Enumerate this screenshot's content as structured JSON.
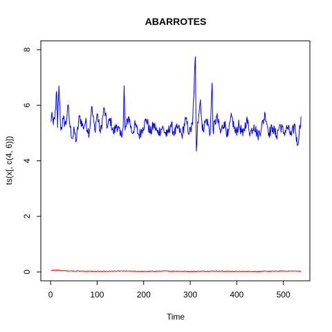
{
  "chart_data": {
    "type": "line",
    "title": "ABARROTES",
    "xlabel": "Time",
    "ylabel": "ts(x[, c(4, 6)])",
    "xlim": [
      -21,
      557
    ],
    "ylim": [
      -0.32,
      8.32
    ],
    "xticks": [
      0,
      100,
      200,
      300,
      400,
      500
    ],
    "yticks": [
      0,
      2,
      4,
      6,
      8
    ],
    "grid": false,
    "legend": "none",
    "n_points": 538,
    "series": [
      {
        "color": "#0000FF",
        "samples": [
          {
            "x": 1,
            "y": 5.4
          },
          {
            "x": 3,
            "y": 5.75
          },
          {
            "x": 6,
            "y": 5.3
          },
          {
            "x": 9,
            "y": 5.5
          },
          {
            "x": 13,
            "y": 6.5
          },
          {
            "x": 15,
            "y": 5.2
          },
          {
            "x": 18,
            "y": 6.7
          },
          {
            "x": 22,
            "y": 5.1
          },
          {
            "x": 27,
            "y": 5.5
          },
          {
            "x": 33,
            "y": 5.3
          },
          {
            "x": 37,
            "y": 6.0
          },
          {
            "x": 42,
            "y": 5.2
          },
          {
            "x": 47,
            "y": 4.8
          },
          {
            "x": 51,
            "y": 5.1
          },
          {
            "x": 55,
            "y": 4.7
          },
          {
            "x": 62,
            "y": 5.6
          },
          {
            "x": 70,
            "y": 5.2
          },
          {
            "x": 75,
            "y": 5.4
          },
          {
            "x": 83,
            "y": 5.0
          },
          {
            "x": 88,
            "y": 5.95
          },
          {
            "x": 95,
            "y": 5.1
          },
          {
            "x": 100,
            "y": 5.7
          },
          {
            "x": 107,
            "y": 5.0
          },
          {
            "x": 115,
            "y": 5.9
          },
          {
            "x": 122,
            "y": 5.2
          },
          {
            "x": 128,
            "y": 5.5
          },
          {
            "x": 135,
            "y": 5.0
          },
          {
            "x": 142,
            "y": 5.3
          },
          {
            "x": 150,
            "y": 4.9
          },
          {
            "x": 156,
            "y": 5.2
          },
          {
            "x": 158,
            "y": 6.7
          },
          {
            "x": 160,
            "y": 5.1
          },
          {
            "x": 168,
            "y": 5.6
          },
          {
            "x": 175,
            "y": 5.0
          },
          {
            "x": 182,
            "y": 5.3
          },
          {
            "x": 190,
            "y": 4.9
          },
          {
            "x": 198,
            "y": 5.2
          },
          {
            "x": 206,
            "y": 5.5
          },
          {
            "x": 214,
            "y": 5.0
          },
          {
            "x": 222,
            "y": 5.3
          },
          {
            "x": 230,
            "y": 5.0
          },
          {
            "x": 240,
            "y": 5.2
          },
          {
            "x": 250,
            "y": 4.9
          },
          {
            "x": 258,
            "y": 5.3
          },
          {
            "x": 266,
            "y": 5.0
          },
          {
            "x": 274,
            "y": 5.2
          },
          {
            "x": 282,
            "y": 4.9
          },
          {
            "x": 290,
            "y": 5.5
          },
          {
            "x": 298,
            "y": 5.0
          },
          {
            "x": 305,
            "y": 5.3
          },
          {
            "x": 311,
            "y": 7.75
          },
          {
            "x": 313,
            "y": 4.35
          },
          {
            "x": 316,
            "y": 5.4
          },
          {
            "x": 322,
            "y": 6.2
          },
          {
            "x": 326,
            "y": 5.1
          },
          {
            "x": 335,
            "y": 5.5
          },
          {
            "x": 343,
            "y": 5.0
          },
          {
            "x": 347,
            "y": 6.8
          },
          {
            "x": 349,
            "y": 5.1
          },
          {
            "x": 357,
            "y": 5.6
          },
          {
            "x": 365,
            "y": 5.0
          },
          {
            "x": 373,
            "y": 5.4
          },
          {
            "x": 381,
            "y": 4.9
          },
          {
            "x": 389,
            "y": 5.6
          },
          {
            "x": 397,
            "y": 5.0
          },
          {
            "x": 405,
            "y": 5.3
          },
          {
            "x": 413,
            "y": 4.9
          },
          {
            "x": 421,
            "y": 5.5
          },
          {
            "x": 429,
            "y": 5.0
          },
          {
            "x": 437,
            "y": 5.3
          },
          {
            "x": 445,
            "y": 4.9
          },
          {
            "x": 453,
            "y": 5.2
          },
          {
            "x": 461,
            "y": 5.7
          },
          {
            "x": 469,
            "y": 5.0
          },
          {
            "x": 477,
            "y": 5.2
          },
          {
            "x": 485,
            "y": 4.9
          },
          {
            "x": 493,
            "y": 5.3
          },
          {
            "x": 501,
            "y": 5.0
          },
          {
            "x": 509,
            "y": 5.2
          },
          {
            "x": 517,
            "y": 4.9
          },
          {
            "x": 525,
            "y": 5.3
          },
          {
            "x": 530,
            "y": 4.55
          },
          {
            "x": 534,
            "y": 5.0
          },
          {
            "x": 538,
            "y": 5.6
          }
        ]
      },
      {
        "color": "#FF0000",
        "samples": [
          {
            "x": 1,
            "y": 0.05
          },
          {
            "x": 10,
            "y": 0.07
          },
          {
            "x": 30,
            "y": 0.04
          },
          {
            "x": 60,
            "y": 0.03
          },
          {
            "x": 100,
            "y": 0.02
          },
          {
            "x": 150,
            "y": 0.03
          },
          {
            "x": 200,
            "y": 0.02
          },
          {
            "x": 250,
            "y": 0.03
          },
          {
            "x": 300,
            "y": 0.02
          },
          {
            "x": 350,
            "y": 0.03
          },
          {
            "x": 400,
            "y": 0.02
          },
          {
            "x": 450,
            "y": 0.02
          },
          {
            "x": 500,
            "y": 0.03
          },
          {
            "x": 538,
            "y": 0.03
          }
        ]
      }
    ]
  }
}
